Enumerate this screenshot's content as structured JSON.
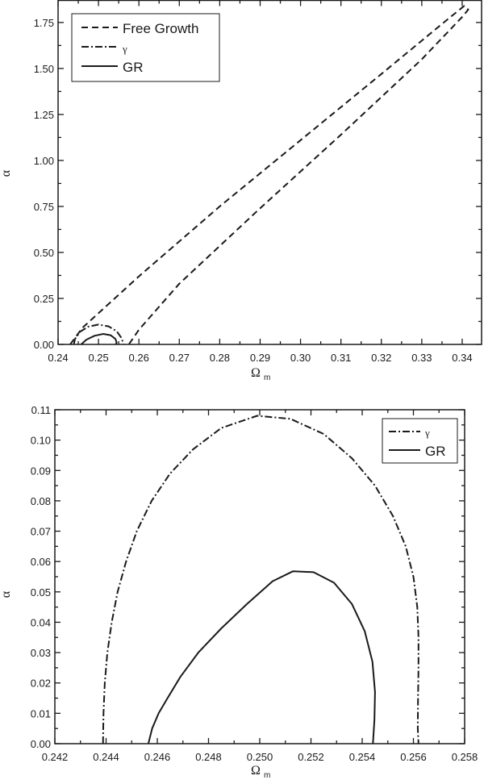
{
  "chart_data": [
    {
      "type": "line",
      "panel": "top",
      "title": "",
      "xlabel": "Ω",
      "xlabel_sub": "m",
      "ylabel": "α",
      "xlim": [
        0.24,
        0.3448
      ],
      "ylim": [
        0.0,
        1.87
      ],
      "xticks": [
        "0.24",
        "0.25",
        "0.26",
        "0.27",
        "0.28",
        "0.29",
        "0.30",
        "0.31",
        "0.32",
        "0.33",
        "0.34"
      ],
      "yticks": [
        "0.00",
        "0.25",
        "0.50",
        "0.75",
        "1.00",
        "1.25",
        "1.50",
        "1.75"
      ],
      "grid": false,
      "legend_position": "upper left",
      "series": [
        {
          "name": "Free Growth",
          "style": "dashed",
          "points": [
            [
              0.243,
              0.0
            ],
            [
              0.246,
              0.09
            ],
            [
              0.26,
              0.37
            ],
            [
              0.28,
              0.75
            ],
            [
              0.3,
              1.11
            ],
            [
              0.32,
              1.47
            ],
            [
              0.336,
              1.76
            ],
            [
              0.3405,
              1.84
            ],
            [
              0.3415,
              1.82
            ],
            [
              0.34,
              1.78
            ],
            [
              0.33,
              1.55
            ],
            [
              0.31,
              1.14
            ],
            [
              0.29,
              0.74
            ],
            [
              0.27,
              0.33
            ],
            [
              0.26,
              0.08
            ],
            [
              0.2575,
              0.0
            ]
          ]
        },
        {
          "name": "γ",
          "style": "dashdot",
          "points": [
            [
              0.2439,
              0.0
            ],
            [
              0.2442,
              0.03
            ],
            [
              0.2455,
              0.07
            ],
            [
              0.2475,
              0.097
            ],
            [
              0.25,
              0.108
            ],
            [
              0.2525,
              0.098
            ],
            [
              0.2545,
              0.072
            ],
            [
              0.2557,
              0.035
            ],
            [
              0.2562,
              0.0
            ]
          ]
        },
        {
          "name": "GR",
          "style": "solid",
          "points": [
            [
              0.2457,
              0.0
            ],
            [
              0.247,
              0.026
            ],
            [
              0.249,
              0.047
            ],
            [
              0.2512,
              0.057
            ],
            [
              0.253,
              0.05
            ],
            [
              0.2542,
              0.03
            ],
            [
              0.2545,
              0.01
            ],
            [
              0.2543,
              0.0
            ]
          ]
        }
      ]
    },
    {
      "type": "line",
      "panel": "bottom",
      "title": "",
      "xlabel": "Ω",
      "xlabel_sub": "m",
      "ylabel": "α",
      "xlim": [
        0.242,
        0.258
      ],
      "ylim": [
        0.0,
        0.11
      ],
      "xticks": [
        "0.242",
        "0.244",
        "0.246",
        "0.248",
        "0.250",
        "0.252",
        "0.254",
        "0.256",
        "0.258"
      ],
      "yticks": [
        "0.00",
        "0.01",
        "0.02",
        "0.03",
        "0.04",
        "0.05",
        "0.06",
        "0.07",
        "0.08",
        "0.09",
        "0.10",
        "0.11"
      ],
      "grid": false,
      "legend_position": "upper right",
      "series": [
        {
          "name": "γ",
          "style": "dashdot",
          "points": [
            [
              0.24388,
              0.0
            ],
            [
              0.2439,
              0.01
            ],
            [
              0.24395,
              0.02
            ],
            [
              0.24405,
              0.03
            ],
            [
              0.24422,
              0.04
            ],
            [
              0.24445,
              0.05
            ],
            [
              0.24478,
              0.06
            ],
            [
              0.2452,
              0.07
            ],
            [
              0.24578,
              0.08
            ],
            [
              0.2465,
              0.089
            ],
            [
              0.2474,
              0.097
            ],
            [
              0.2485,
              0.104
            ],
            [
              0.2499,
              0.108
            ],
            [
              0.2512,
              0.107
            ],
            [
              0.2525,
              0.102
            ],
            [
              0.2536,
              0.094
            ],
            [
              0.2545,
              0.085
            ],
            [
              0.2552,
              0.075
            ],
            [
              0.2557,
              0.065
            ],
            [
              0.256,
              0.055
            ],
            [
              0.25615,
              0.045
            ],
            [
              0.2562,
              0.035
            ],
            [
              0.2562,
              0.025
            ],
            [
              0.25618,
              0.015
            ],
            [
              0.25617,
              0.005
            ],
            [
              0.2562,
              0.0
            ]
          ]
        },
        {
          "name": "GR",
          "style": "solid",
          "points": [
            [
              0.24565,
              0.0
            ],
            [
              0.2458,
              0.005
            ],
            [
              0.24605,
              0.01
            ],
            [
              0.2464,
              0.015
            ],
            [
              0.2469,
              0.022
            ],
            [
              0.2476,
              0.03
            ],
            [
              0.2485,
              0.038
            ],
            [
              0.2495,
              0.046
            ],
            [
              0.2505,
              0.0535
            ],
            [
              0.2513,
              0.0568
            ],
            [
              0.2521,
              0.0565
            ],
            [
              0.2529,
              0.053
            ],
            [
              0.2536,
              0.046
            ],
            [
              0.2541,
              0.037
            ],
            [
              0.2544,
              0.027
            ],
            [
              0.2545,
              0.017
            ],
            [
              0.25448,
              0.008
            ],
            [
              0.25442,
              0.0
            ]
          ]
        }
      ]
    }
  ],
  "top_legend": {
    "items": [
      {
        "label": "Free Growth",
        "style": "dashed"
      },
      {
        "label": "γ",
        "style": "dashdot"
      },
      {
        "label": "GR",
        "style": "solid"
      }
    ]
  },
  "bottom_legend": {
    "items": [
      {
        "label": "γ",
        "style": "dashdot"
      },
      {
        "label": "GR",
        "style": "solid"
      }
    ]
  },
  "colors": {
    "line": "#1a1a1a",
    "frame": "#1a1a1a",
    "background": "#ffffff"
  }
}
